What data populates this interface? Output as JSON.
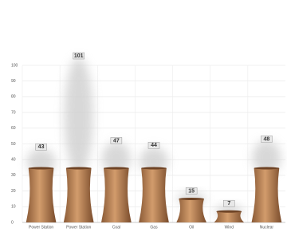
{
  "chart_data": {
    "type": "tower",
    "categories": [
      "Power Station",
      "Power Station",
      "Coal",
      "Gas",
      "Oil",
      "Wind",
      "Nuclear"
    ],
    "values": [
      43,
      101,
      47,
      44,
      15,
      7,
      48
    ],
    "color": "#b27c52",
    "ylim": [
      0,
      100
    ],
    "yticks": [
      0,
      10,
      20,
      30,
      40,
      50,
      60,
      70,
      80,
      90,
      100
    ],
    "grid": true
  }
}
